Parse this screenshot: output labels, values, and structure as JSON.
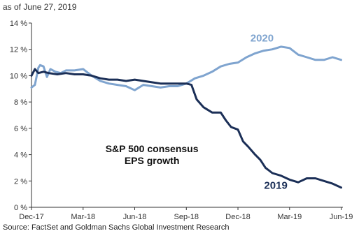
{
  "header": {
    "date_note": "as of June 27, 2019"
  },
  "footer": {
    "source": "Source: FactSet and Goldman Sachs Global Investment Research"
  },
  "chart_data": {
    "type": "line",
    "title": "",
    "xlabel": "",
    "ylabel": "",
    "grid": false,
    "annotation": [
      "S&P 500 consensus",
      "EPS growth"
    ],
    "ylim": [
      0,
      14
    ],
    "yticks": [
      0,
      2,
      4,
      6,
      8,
      10,
      12,
      14
    ],
    "ytick_labels": [
      "0 %",
      "2 %",
      "4 %",
      "6 %",
      "8 %",
      "10 %",
      "12 %",
      "14 %"
    ],
    "xlim": [
      0,
      18.1
    ],
    "xticks": [
      0,
      3,
      6,
      9,
      12,
      15,
      18
    ],
    "xtick_labels": [
      "Dec-17",
      "Mar-18",
      "Jun-18",
      "Sep-18",
      "Dec-18",
      "Mar-19",
      "Jun-19"
    ],
    "colors": {
      "2019": "#1b2f57",
      "2020": "#7fa4cf"
    },
    "series": [
      {
        "name": "2019",
        "x": [
          0,
          0.2,
          0.4,
          0.7,
          1.0,
          1.5,
          2.0,
          2.5,
          3.0,
          3.5,
          4.0,
          4.5,
          5.0,
          5.5,
          6.0,
          6.5,
          7.0,
          7.5,
          8.0,
          8.5,
          9.0,
          9.3,
          9.6,
          10.0,
          10.5,
          11.0,
          11.3,
          11.6,
          12.0,
          12.3,
          12.6,
          13.0,
          13.3,
          13.6,
          14.0,
          14.5,
          15.0,
          15.5,
          16.0,
          16.5,
          17.0,
          17.5,
          18.0
        ],
        "values": [
          10.0,
          10.5,
          10.2,
          10.3,
          10.2,
          10.1,
          10.2,
          10.1,
          10.1,
          10.0,
          9.8,
          9.7,
          9.7,
          9.6,
          9.7,
          9.6,
          9.5,
          9.4,
          9.4,
          9.4,
          9.4,
          9.3,
          8.2,
          7.6,
          7.2,
          7.2,
          6.6,
          6.1,
          5.9,
          5.0,
          4.6,
          4.0,
          3.6,
          3.0,
          2.6,
          2.4,
          2.1,
          1.9,
          2.2,
          2.2,
          2.0,
          1.8,
          1.5
        ]
      },
      {
        "name": "2020",
        "x": [
          0,
          0.2,
          0.4,
          0.5,
          0.7,
          0.9,
          1.1,
          1.4,
          1.7,
          2.0,
          2.5,
          3.0,
          3.5,
          4.0,
          4.5,
          5.0,
          5.5,
          6.0,
          6.5,
          7.0,
          7.5,
          8.0,
          8.5,
          9.0,
          9.5,
          10.0,
          10.5,
          11.0,
          11.5,
          12.0,
          12.5,
          13.0,
          13.5,
          14.0,
          14.5,
          15.0,
          15.5,
          16.0,
          16.5,
          17.0,
          17.5,
          18.0
        ],
        "values": [
          9.1,
          9.3,
          10.6,
          10.8,
          10.7,
          9.9,
          10.5,
          10.3,
          10.2,
          10.4,
          10.4,
          10.5,
          10.0,
          9.6,
          9.4,
          9.3,
          9.2,
          8.9,
          9.3,
          9.2,
          9.1,
          9.2,
          9.2,
          9.4,
          9.8,
          10.0,
          10.3,
          10.7,
          10.9,
          11.0,
          11.4,
          11.7,
          11.9,
          12.0,
          12.2,
          12.1,
          11.6,
          11.4,
          11.2,
          11.2,
          11.4,
          11.2
        ]
      }
    ]
  }
}
